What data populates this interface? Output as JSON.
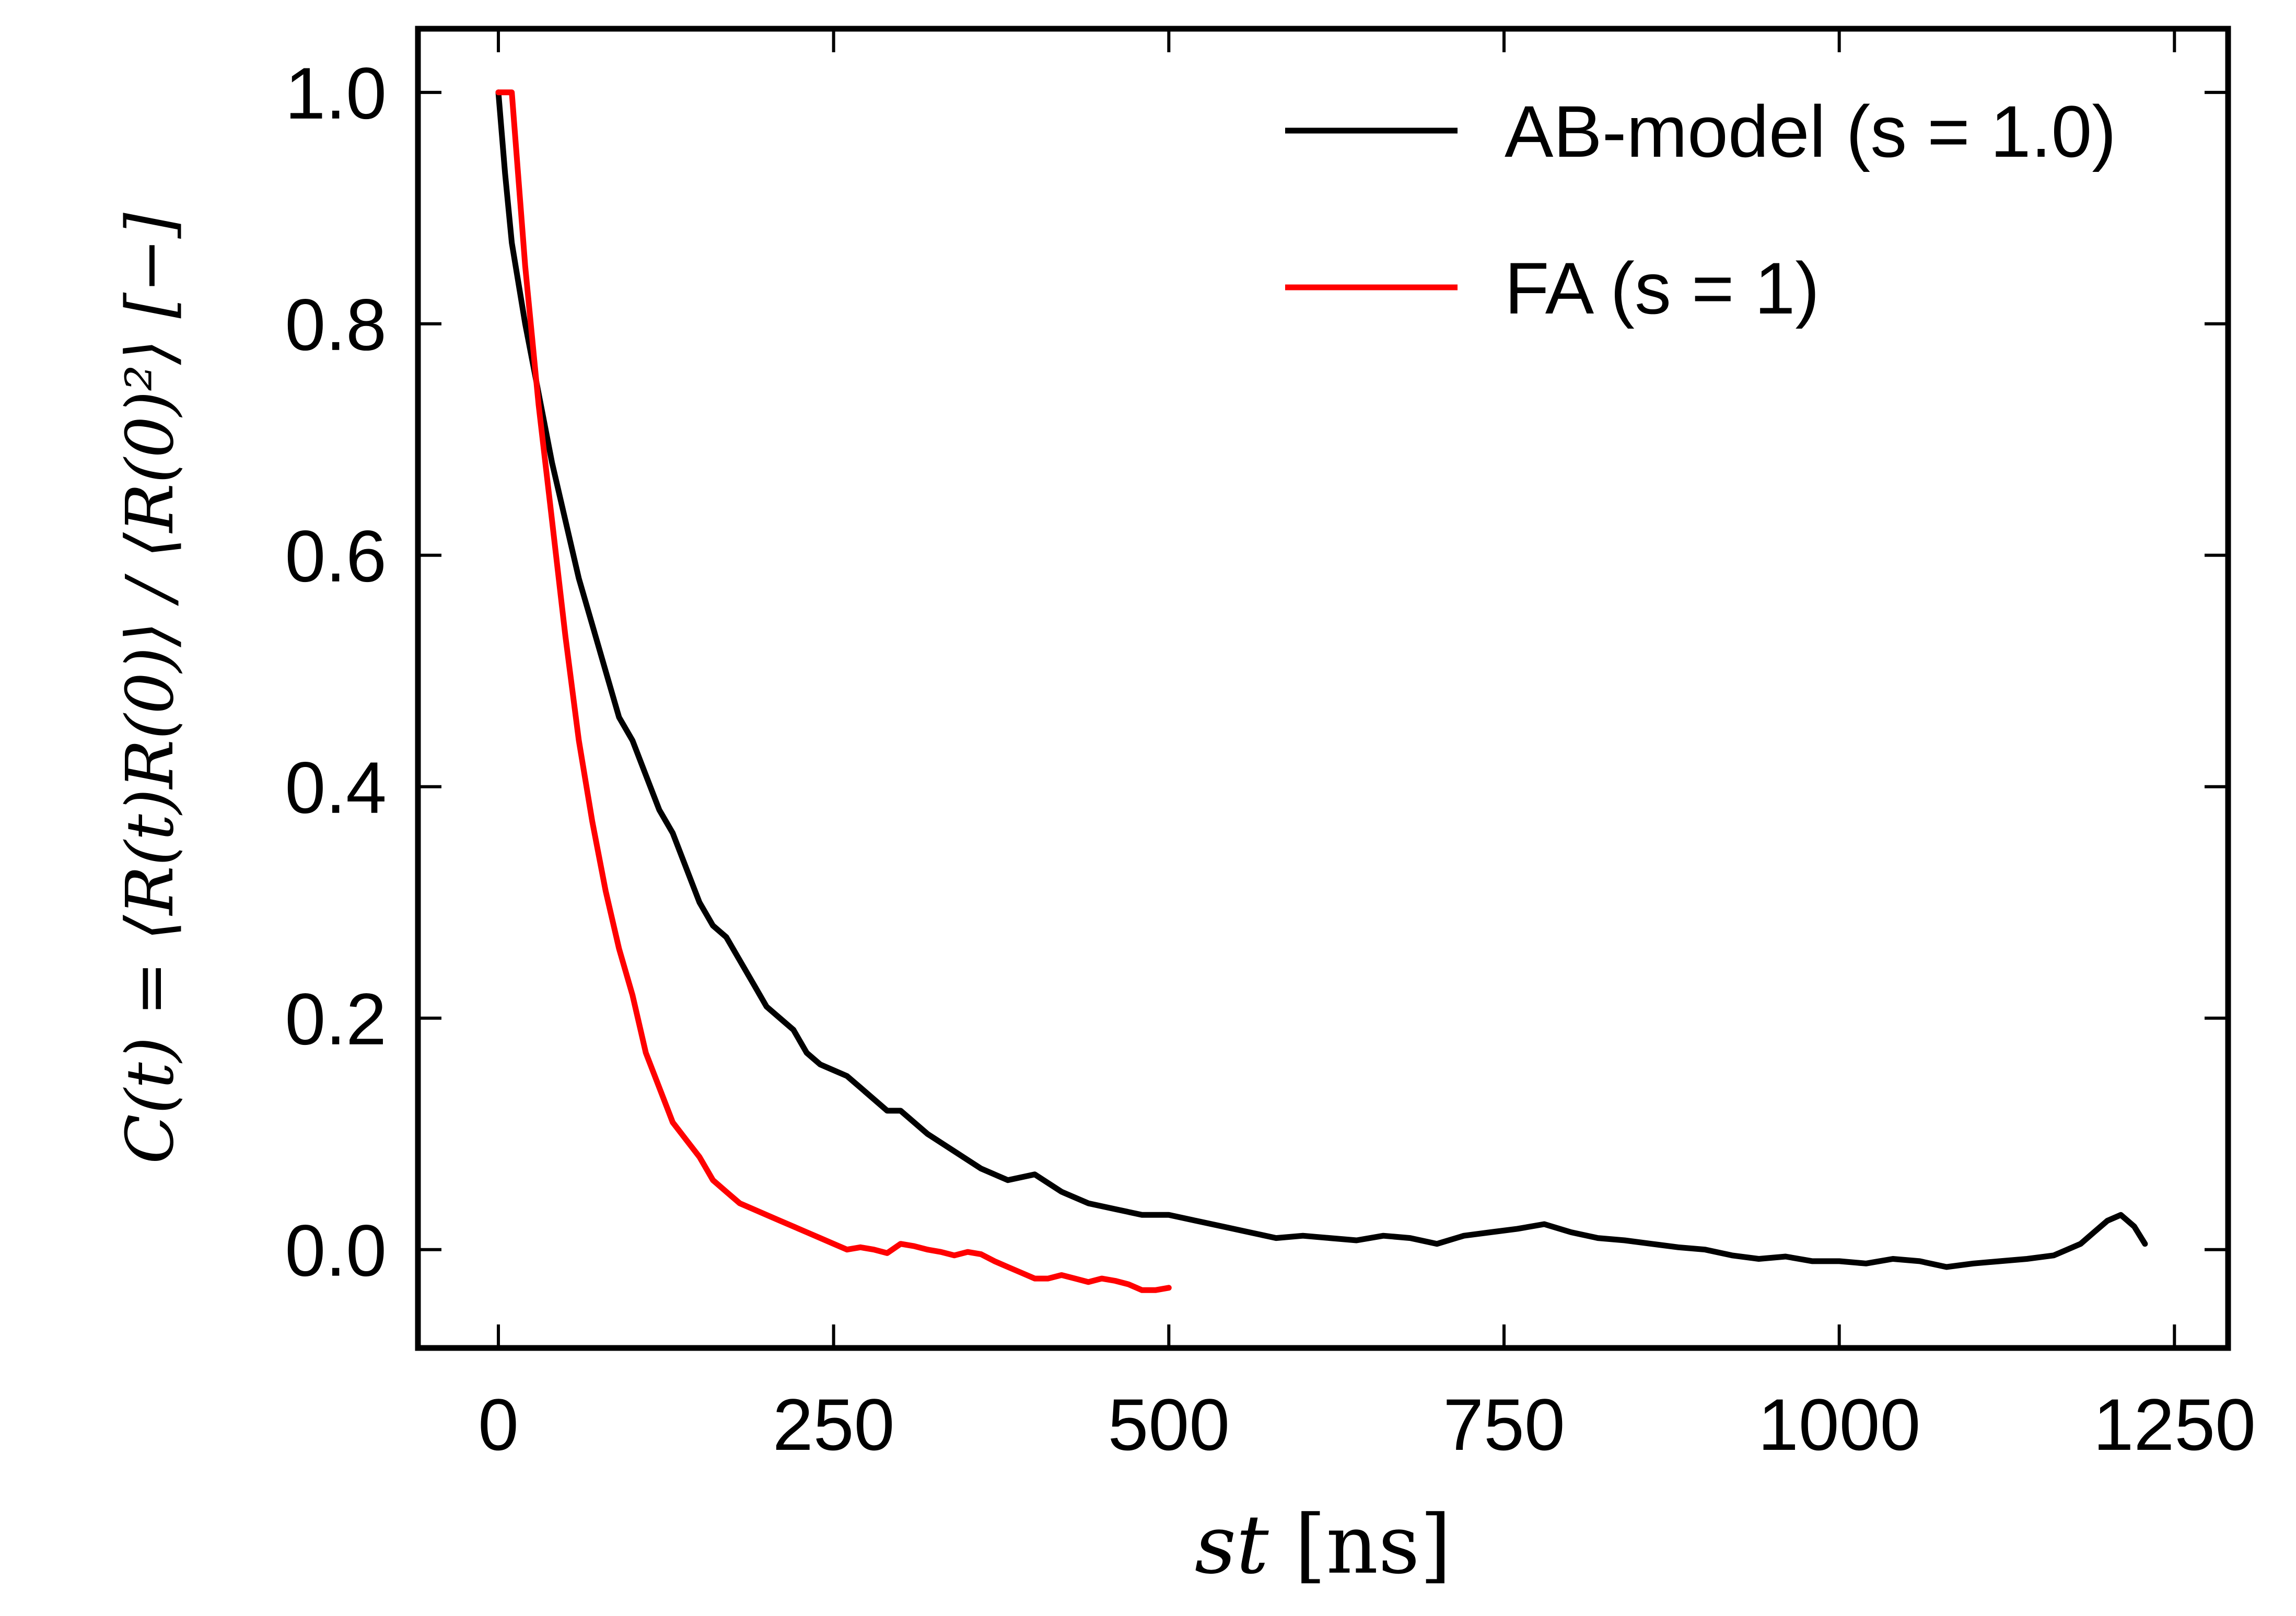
{
  "chart_data": {
    "type": "line",
    "title": "",
    "xlabel": "st [ns]",
    "ylabel": "C(t) = ⟨R(t)R(0)⟩ / ⟨R(0)²⟩ [−]",
    "xlim": [
      -60,
      1290
    ],
    "ylim": [
      -0.085,
      1.055
    ],
    "xticks": [
      0,
      250,
      500,
      750,
      1000,
      1250
    ],
    "xtick_labels": [
      "0",
      "250",
      "500",
      "750",
      "1000",
      "1250"
    ],
    "yticks": [
      0.0,
      0.2,
      0.4,
      0.6,
      0.8,
      1.0
    ],
    "ytick_labels": [
      "0.0",
      "0.2",
      "0.4",
      "0.6",
      "0.8",
      "1.0"
    ],
    "grid": false,
    "legend_position": "top-right",
    "series": [
      {
        "name": "AB-model (s = 1.0)",
        "color": "#000000",
        "x": [
          0,
          5,
          10,
          20,
          30,
          40,
          50,
          60,
          70,
          80,
          90,
          100,
          110,
          120,
          130,
          140,
          150,
          160,
          170,
          180,
          190,
          200,
          210,
          220,
          230,
          240,
          250,
          260,
          270,
          280,
          290,
          300,
          320,
          340,
          360,
          380,
          400,
          420,
          440,
          460,
          480,
          500,
          520,
          540,
          560,
          580,
          600,
          620,
          640,
          660,
          680,
          700,
          720,
          740,
          760,
          780,
          800,
          820,
          840,
          860,
          880,
          900,
          920,
          940,
          960,
          980,
          1000,
          1020,
          1040,
          1060,
          1080,
          1100,
          1120,
          1140,
          1160,
          1180,
          1190,
          1200,
          1210,
          1220,
          1228
        ],
        "y": [
          1.0,
          0.93,
          0.87,
          0.8,
          0.74,
          0.68,
          0.63,
          0.58,
          0.54,
          0.5,
          0.46,
          0.44,
          0.41,
          0.38,
          0.36,
          0.33,
          0.3,
          0.28,
          0.27,
          0.25,
          0.23,
          0.21,
          0.2,
          0.19,
          0.17,
          0.16,
          0.155,
          0.15,
          0.14,
          0.13,
          0.12,
          0.12,
          0.1,
          0.085,
          0.07,
          0.06,
          0.065,
          0.05,
          0.04,
          0.035,
          0.03,
          0.03,
          0.025,
          0.02,
          0.015,
          0.01,
          0.012,
          0.01,
          0.008,
          0.012,
          0.01,
          0.005,
          0.012,
          0.015,
          0.018,
          0.022,
          0.015,
          0.01,
          0.008,
          0.005,
          0.002,
          0.0,
          -0.005,
          -0.008,
          -0.006,
          -0.01,
          -0.01,
          -0.012,
          -0.008,
          -0.01,
          -0.015,
          -0.012,
          -0.01,
          -0.008,
          -0.005,
          0.005,
          0.015,
          0.025,
          0.03,
          0.02,
          0.005
        ]
      },
      {
        "name": "FA (s = 1)",
        "color": "#ff0000",
        "x": [
          0,
          10,
          12,
          20,
          30,
          40,
          50,
          60,
          70,
          80,
          90,
          100,
          110,
          120,
          130,
          140,
          150,
          160,
          170,
          180,
          190,
          200,
          210,
          220,
          230,
          240,
          250,
          260,
          270,
          280,
          290,
          300,
          310,
          320,
          330,
          340,
          350,
          360,
          370,
          380,
          390,
          400,
          410,
          420,
          430,
          440,
          450,
          460,
          470,
          480,
          490,
          500
        ],
        "y": [
          1.0,
          1.0,
          0.97,
          0.85,
          0.73,
          0.63,
          0.53,
          0.44,
          0.37,
          0.31,
          0.26,
          0.22,
          0.17,
          0.14,
          0.11,
          0.095,
          0.08,
          0.06,
          0.05,
          0.04,
          0.035,
          0.03,
          0.025,
          0.02,
          0.015,
          0.01,
          0.005,
          0.0,
          0.002,
          0.0,
          -0.003,
          0.005,
          0.003,
          0.0,
          -0.002,
          -0.005,
          -0.002,
          -0.004,
          -0.01,
          -0.015,
          -0.02,
          -0.025,
          -0.025,
          -0.022,
          -0.025,
          -0.028,
          -0.025,
          -0.027,
          -0.03,
          -0.035,
          -0.035,
          -0.033
        ]
      }
    ]
  }
}
